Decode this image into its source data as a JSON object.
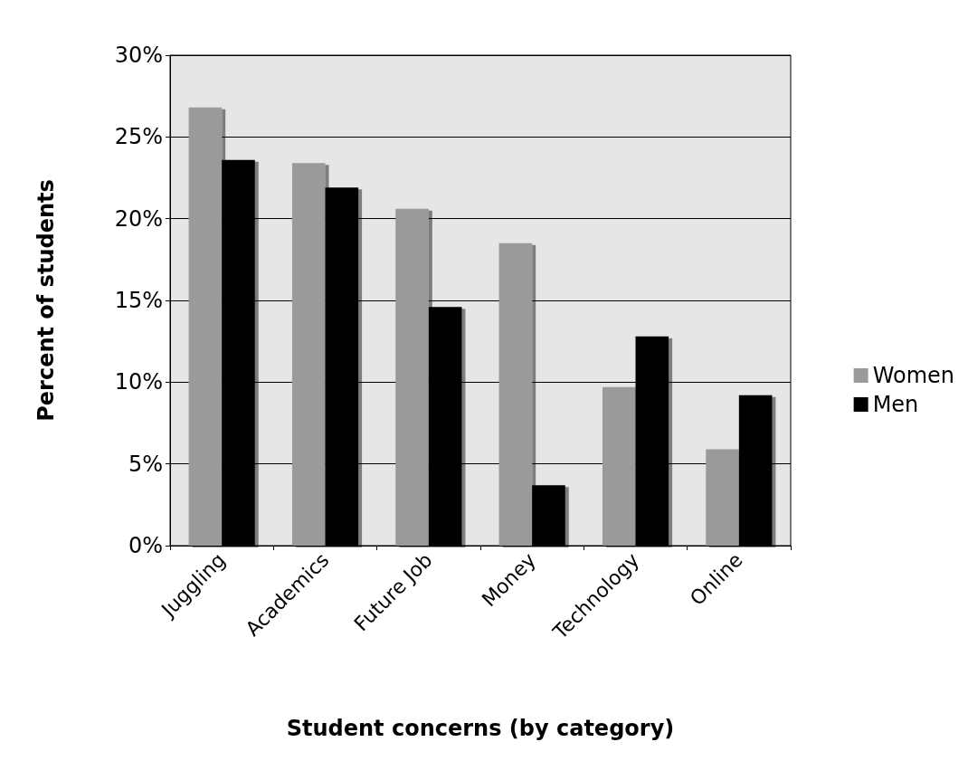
{
  "chart_data": {
    "type": "bar",
    "xlabel": "Student concerns (by category)",
    "ylabel": "Percent of students",
    "categories": [
      "Juggling",
      "Academics",
      "Future Job",
      "Money",
      "Technology",
      "Online"
    ],
    "series": [
      {
        "name": "Women",
        "color": "#9a9a9a",
        "values": [
          26.8,
          23.4,
          20.6,
          18.5,
          9.7,
          5.9
        ]
      },
      {
        "name": "Men",
        "color": "#000000",
        "values": [
          23.6,
          21.9,
          14.6,
          3.7,
          12.8,
          9.2
        ]
      }
    ],
    "ylim": [
      0,
      30
    ],
    "yticks": [
      {
        "value": 0,
        "label": "0%"
      },
      {
        "value": 5,
        "label": "5%"
      },
      {
        "value": 10,
        "label": "10%"
      },
      {
        "value": 15,
        "label": "15%"
      },
      {
        "value": 20,
        "label": "20%"
      },
      {
        "value": 25,
        "label": "25%"
      },
      {
        "value": 30,
        "label": "30%"
      }
    ],
    "grid": "y",
    "legend": "right"
  }
}
